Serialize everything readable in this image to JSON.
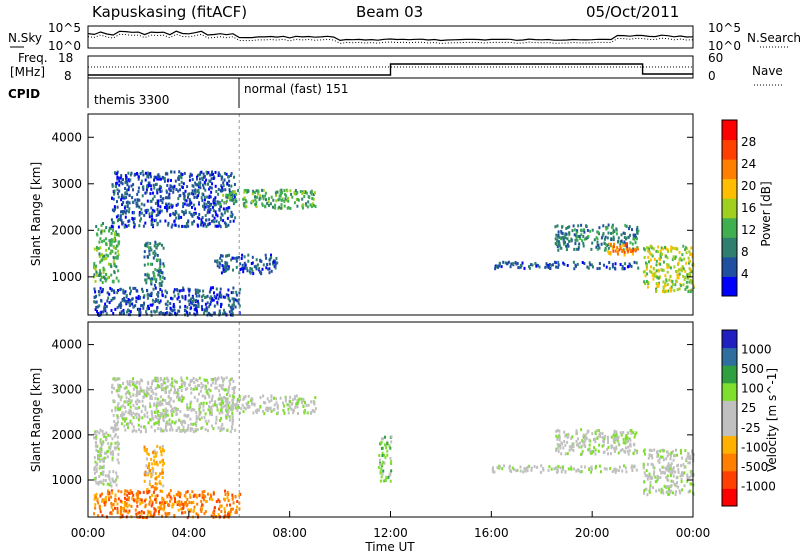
{
  "header": {
    "station": "Kapuskasing (fitACF)",
    "beam": "Beam 03",
    "date": "05/Oct/2011"
  },
  "strip_labels": {
    "nsky": "N.Sky",
    "nsearch": "N.Search",
    "freq_l1": "Freq.",
    "freq_l2": "[MHz]",
    "nave": "Nave",
    "cpid": "CPID"
  },
  "strip_ticks": {
    "noise_left_top": "10^5",
    "noise_left_bot": "10^0",
    "noise_right_top": "10^5",
    "noise_right_bot": "10^0",
    "freq_left_top": "18",
    "freq_left_bot": "8",
    "nave_right_top": "60",
    "nave_right_bot": "0"
  },
  "cpid_segments": [
    {
      "label": "themis 3300",
      "start_hour": 0,
      "end_hour": 6
    },
    {
      "label": "normal (fast) 151",
      "start_hour": 6,
      "end_hour": 24
    }
  ],
  "colors": {
    "power": [
      "#0000ff",
      "#1f4f9f",
      "#2f7f6f",
      "#3faf4f",
      "#9fcf1f",
      "#ffbf00",
      "#ff8000",
      "#ff4000",
      "#ff0000"
    ],
    "velocity": [
      "#2020c0",
      "#2f6fa0",
      "#2f9f3f",
      "#7fdf2f",
      "#c0c0c0",
      "#c0c0c0",
      "#ffb000",
      "#ff8000",
      "#ff4000",
      "#ff0000"
    ]
  },
  "chart_data": [
    {
      "type": "heatmap",
      "title": "",
      "xlabel": "Time UT",
      "ylabel": "Slant Range [km]",
      "xlim": [
        0,
        24
      ],
      "ylim": [
        180,
        4500
      ],
      "xticks": [
        "00:00",
        "04:00",
        "08:00",
        "12:00",
        "16:00",
        "20:00",
        "00:00"
      ],
      "yticks": [
        "1000",
        "2000",
        "3000",
        "4000"
      ],
      "colorbar": {
        "label": "Power [dB]",
        "range": [
          0,
          30
        ],
        "ticks": [
          "4",
          "8",
          "12",
          "16",
          "20",
          "24",
          "28"
        ]
      },
      "regions": [
        {
          "t0": 0.2,
          "t1": 1.2,
          "r0": 900,
          "r1": 2200,
          "level": 3
        },
        {
          "t0": 0.9,
          "t1": 5.8,
          "r0": 2100,
          "r1": 3300,
          "level": 1
        },
        {
          "t0": 5.2,
          "t1": 9.0,
          "r0": 2500,
          "r1": 2900,
          "level": 3
        },
        {
          "t0": 2.2,
          "t1": 3.0,
          "r0": 800,
          "r1": 1800,
          "level": 2
        },
        {
          "t0": 5.0,
          "t1": 7.5,
          "r0": 1100,
          "r1": 1500,
          "level": 1
        },
        {
          "t0": 0.2,
          "t1": 6.0,
          "r0": 200,
          "r1": 800,
          "level": 1
        },
        {
          "t0": 16.0,
          "t1": 21.8,
          "r0": 1200,
          "r1": 1350,
          "level": 1
        },
        {
          "t0": 18.5,
          "t1": 21.8,
          "r0": 1600,
          "r1": 2150,
          "level": 2
        },
        {
          "t0": 22.0,
          "t1": 24.0,
          "r0": 700,
          "r1": 1700,
          "level": 4
        },
        {
          "t0": 20.5,
          "t1": 21.8,
          "r0": 1500,
          "r1": 1750,
          "level": 6
        }
      ]
    },
    {
      "type": "heatmap",
      "title": "",
      "xlabel": "Time UT",
      "ylabel": "Slant Range [km]",
      "xlim": [
        0,
        24
      ],
      "ylim": [
        180,
        4500
      ],
      "xticks": [
        "00:00",
        "04:00",
        "08:00",
        "12:00",
        "16:00",
        "20:00",
        "00:00"
      ],
      "yticks": [
        "1000",
        "2000",
        "3000",
        "4000"
      ],
      "colorbar": {
        "label": "Velocity [m s^-1]",
        "ticks": [
          "1000",
          "500",
          "100",
          "25",
          "-25",
          "-100",
          "-500",
          "-1000"
        ]
      },
      "regions": [
        {
          "t0": 0.2,
          "t1": 1.2,
          "r0": 900,
          "r1": 2200,
          "level": 4
        },
        {
          "t0": 0.9,
          "t1": 5.8,
          "r0": 2100,
          "r1": 3300,
          "level": 4
        },
        {
          "t0": 5.2,
          "t1": 9.0,
          "r0": 2500,
          "r1": 2900,
          "level": 4
        },
        {
          "t0": 2.2,
          "t1": 3.0,
          "r0": 800,
          "r1": 1800,
          "level": 6
        },
        {
          "t0": 0.2,
          "t1": 6.0,
          "r0": 200,
          "r1": 800,
          "level": 7
        },
        {
          "t0": 11.5,
          "t1": 12.0,
          "r0": 1000,
          "r1": 2000,
          "level": 3
        },
        {
          "t0": 16.0,
          "t1": 21.8,
          "r0": 1200,
          "r1": 1350,
          "level": 4
        },
        {
          "t0": 18.5,
          "t1": 21.8,
          "r0": 1600,
          "r1": 2150,
          "level": 4
        },
        {
          "t0": 22.0,
          "t1": 24.0,
          "r0": 700,
          "r1": 1700,
          "level": 4
        }
      ]
    }
  ]
}
